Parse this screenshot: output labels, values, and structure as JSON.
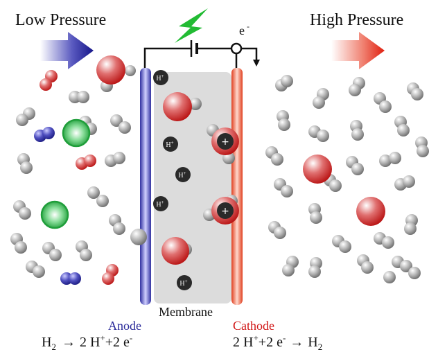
{
  "labels": {
    "low_pressure": "Low Pressure",
    "high_pressure": "High Pressure",
    "membrane": "Membrane",
    "anode": "Anode",
    "cathode": "Cathode",
    "electron": "e",
    "electron_sup": "-",
    "proton": "H",
    "proton_sup": "+"
  },
  "equations": {
    "anode": {
      "h": "H",
      "sub2": "2",
      "arrow": "→",
      "coef": "2 H",
      "plus_sup": "+",
      "rest": "+2 e",
      "minus_sup": "-"
    },
    "cathode": {
      "coef": "2 H",
      "plus_sup": "+",
      "mid": "+2 e",
      "minus_sup": "-",
      "arrow": "→",
      "h": "H",
      "sub2": "2"
    }
  },
  "colors": {
    "anode": "#2a2a9a",
    "cathode": "#d01515",
    "membrane": "#dcdcdc",
    "lightning": "#22bb33",
    "arrow_low": "#1e1e8c",
    "arrow_high": "#e83020"
  }
}
